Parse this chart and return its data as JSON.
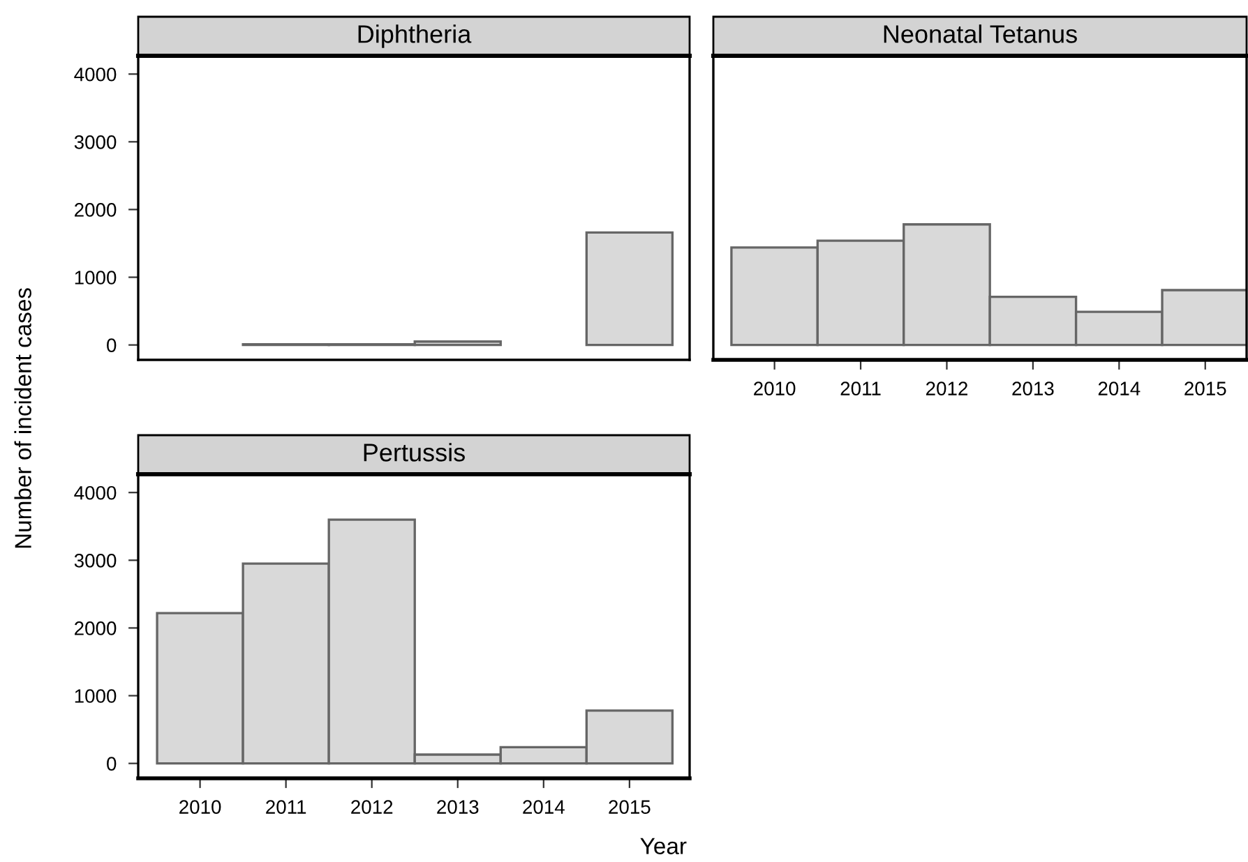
{
  "chart_data": [
    {
      "type": "bar",
      "title": "Diphtheria",
      "ylabel": "Number of incident cases",
      "categories": [
        "2010",
        "2011",
        "2012",
        "2013",
        "2014",
        "2015"
      ],
      "series": [
        {
          "color": "#d9d9d9",
          "values": [
            null,
            10,
            10,
            50,
            null,
            1660
          ]
        }
      ],
      "ylim": [
        -220,
        4270
      ],
      "yticks": [
        0,
        1000,
        2000,
        3000,
        4000
      ],
      "tick_labels": "y",
      "grid": false,
      "legend": false
    },
    {
      "type": "bar",
      "title": "Neonatal Tetanus",
      "categories": [
        "2010",
        "2011",
        "2012",
        "2013",
        "2014",
        "2015"
      ],
      "series": [
        {
          "color": "#d9d9d9",
          "values": [
            1440,
            1540,
            1780,
            710,
            490,
            810
          ]
        }
      ],
      "ylim": [
        -220,
        4270
      ],
      "yticks": [
        0,
        1000,
        2000,
        3000,
        4000
      ],
      "tick_labels": "x",
      "grid": false,
      "legend": false
    },
    {
      "type": "bar",
      "title": "Pertussis",
      "xlabel": "Year",
      "categories": [
        "2010",
        "2011",
        "2012",
        "2013",
        "2014",
        "2015"
      ],
      "series": [
        {
          "color": "#d9d9d9",
          "values": [
            2220,
            2950,
            3600,
            130,
            240,
            780
          ]
        }
      ],
      "ylim": [
        -220,
        4270
      ],
      "yticks": [
        0,
        1000,
        2000,
        3000,
        4000
      ],
      "grid": false,
      "legend": false
    }
  ]
}
